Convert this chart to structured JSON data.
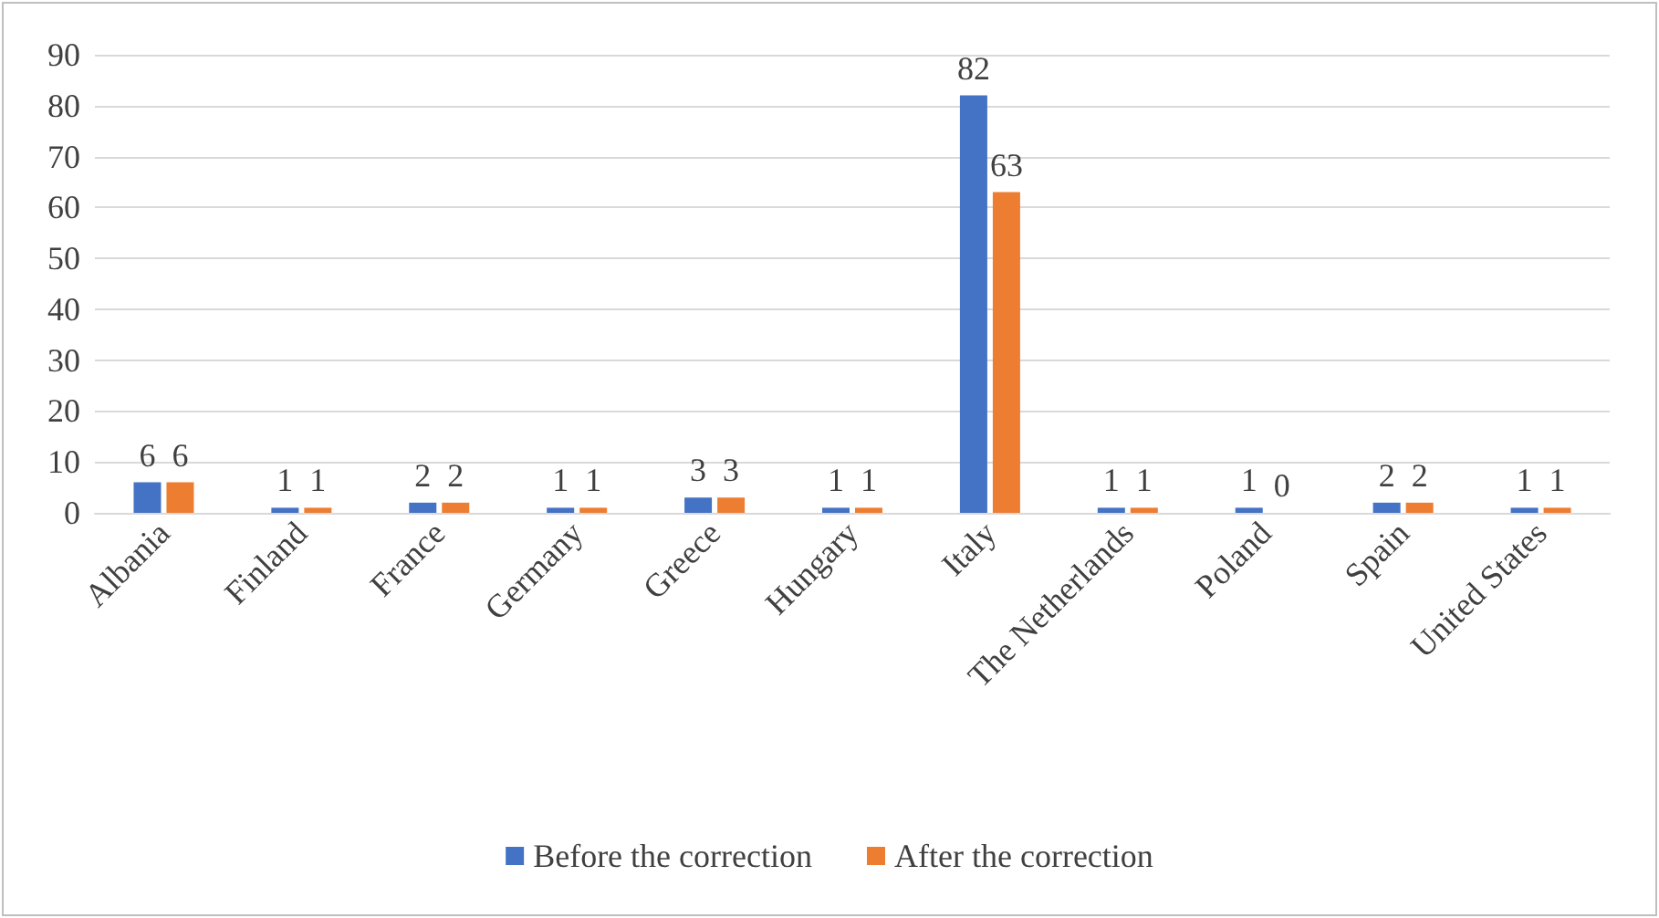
{
  "chart_data": {
    "type": "bar",
    "categories": [
      "Albania",
      "Finland",
      "France",
      "Germany",
      "Greece",
      "Hungary",
      "Italy",
      "The Netherlands",
      "Poland",
      "Spain",
      "United States"
    ],
    "series": [
      {
        "name": "Before the correction",
        "color": "#4472c4",
        "values": [
          6,
          1,
          2,
          1,
          3,
          1,
          82,
          1,
          1,
          2,
          1
        ]
      },
      {
        "name": "After the correction",
        "color": "#ed7d31",
        "values": [
          6,
          1,
          2,
          1,
          3,
          1,
          63,
          1,
          0,
          2,
          1
        ]
      }
    ],
    "ylim": [
      0,
      90
    ],
    "yticks": [
      0,
      10,
      20,
      30,
      40,
      50,
      60,
      70,
      80,
      90
    ],
    "grid": "y",
    "legend": "bottom",
    "data_labels": true
  }
}
